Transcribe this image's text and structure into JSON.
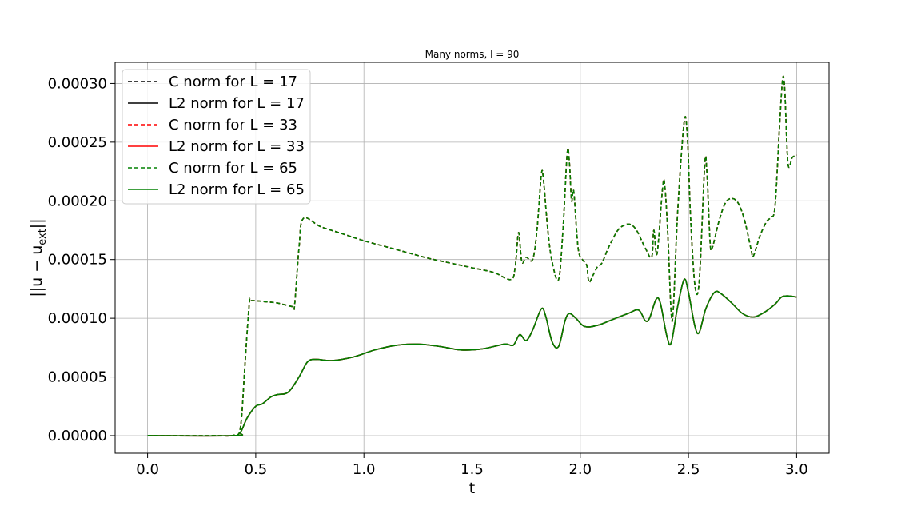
{
  "chart_data": {
    "type": "line",
    "title": "Many norms, l = 90",
    "xlabel": "t",
    "ylabel": "||u − u_ext||",
    "ylabel_main": "||u − u",
    "ylabel_sub": "ext",
    "ylabel_end": "||",
    "xlim": [
      -0.15,
      3.15
    ],
    "ylim": [
      -1.5e-05,
      0.000318
    ],
    "grid": true,
    "legend_position": "top-left",
    "x_ticks": [
      0.0,
      0.5,
      1.0,
      1.5,
      2.0,
      2.5,
      3.0
    ],
    "x_tick_labels": [
      "0.0",
      "0.5",
      "1.0",
      "1.5",
      "2.0",
      "2.5",
      "3.0"
    ],
    "y_ticks": [
      0,
      5e-05,
      0.0001,
      0.00015,
      0.0002,
      0.00025,
      0.0003
    ],
    "y_tick_labels": [
      "0.00000",
      "0.00005",
      "0.00010",
      "0.00015",
      "0.00020",
      "0.00025",
      "0.00030"
    ],
    "series": [
      {
        "name": "C norm for L = 17",
        "color": "#000000",
        "dash": true,
        "curve": "c"
      },
      {
        "name": "L2 norm for L = 17",
        "color": "#000000",
        "dash": false,
        "curve": "l2"
      },
      {
        "name": "C norm for L = 33",
        "color": "#ff0000",
        "dash": true,
        "curve": "c"
      },
      {
        "name": "L2 norm for L = 33",
        "color": "#ff0000",
        "dash": false,
        "curve": "l2"
      },
      {
        "name": "C norm for L = 65",
        "color": "#008000",
        "dash": true,
        "curve": "c"
      },
      {
        "name": "L2 norm for L = 65",
        "color": "#008000",
        "dash": false,
        "curve": "l2"
      }
    ],
    "curves": {
      "c": [
        [
          0.0,
          0.0
        ],
        [
          0.3,
          0.0
        ],
        [
          0.4,
          5e-07
        ],
        [
          0.43,
          8e-06
        ],
        [
          0.45,
          6e-05
        ],
        [
          0.47,
          0.000112
        ],
        [
          0.48,
          0.000115
        ],
        [
          0.55,
          0.000114
        ],
        [
          0.6,
          0.000113
        ],
        [
          0.67,
          0.00011
        ],
        [
          0.68,
          0.000112
        ],
        [
          0.7,
          0.00016
        ],
        [
          0.72,
          0.000185
        ],
        [
          0.8,
          0.000178
        ],
        [
          0.9,
          0.000172
        ],
        [
          1.0,
          0.000166
        ],
        [
          1.1,
          0.000161
        ],
        [
          1.2,
          0.000156
        ],
        [
          1.3,
          0.000151
        ],
        [
          1.4,
          0.000147
        ],
        [
          1.5,
          0.000143
        ],
        [
          1.6,
          0.000139
        ],
        [
          1.68,
          0.000133
        ],
        [
          1.7,
          0.000145
        ],
        [
          1.715,
          0.000173
        ],
        [
          1.73,
          0.000148
        ],
        [
          1.75,
          0.000152
        ],
        [
          1.78,
          0.00015
        ],
        [
          1.8,
          0.000175
        ],
        [
          1.82,
          0.000222
        ],
        [
          1.83,
          0.000218
        ],
        [
          1.85,
          0.000175
        ],
        [
          1.87,
          0.000148
        ],
        [
          1.9,
          0.000133
        ],
        [
          1.92,
          0.000175
        ],
        [
          1.94,
          0.000241
        ],
        [
          1.95,
          0.000232
        ],
        [
          1.96,
          0.0002
        ],
        [
          1.97,
          0.000208
        ],
        [
          1.99,
          0.00016
        ],
        [
          2.01,
          0.00015
        ],
        [
          2.03,
          0.000145
        ],
        [
          2.04,
          0.000131
        ],
        [
          2.06,
          0.000137
        ],
        [
          2.08,
          0.000144
        ],
        [
          2.1,
          0.000147
        ],
        [
          2.13,
          0.00016
        ],
        [
          2.17,
          0.000174
        ],
        [
          2.2,
          0.000179
        ],
        [
          2.23,
          0.00018
        ],
        [
          2.26,
          0.000175
        ],
        [
          2.3,
          0.00016
        ],
        [
          2.33,
          0.000152
        ],
        [
          2.34,
          0.000175
        ],
        [
          2.355,
          0.000155
        ],
        [
          2.38,
          0.00021
        ],
        [
          2.39,
          0.000214
        ],
        [
          2.405,
          0.00017
        ],
        [
          2.42,
          0.000105
        ],
        [
          2.43,
          0.000108
        ],
        [
          2.45,
          0.00019
        ],
        [
          2.48,
          0.000267
        ],
        [
          2.495,
          0.000255
        ],
        [
          2.51,
          0.000185
        ],
        [
          2.53,
          0.000128
        ],
        [
          2.55,
          0.000132
        ],
        [
          2.575,
          0.00023
        ],
        [
          2.585,
          0.000225
        ],
        [
          2.6,
          0.000165
        ],
        [
          2.61,
          0.00016
        ],
        [
          2.64,
          0.000182
        ],
        [
          2.67,
          0.000198
        ],
        [
          2.7,
          0.000202
        ],
        [
          2.73,
          0.000198
        ],
        [
          2.76,
          0.000183
        ],
        [
          2.79,
          0.000158
        ],
        [
          2.8,
          0.000153
        ],
        [
          2.83,
          0.00017
        ],
        [
          2.86,
          0.000182
        ],
        [
          2.88,
          0.000186
        ],
        [
          2.9,
          0.000195
        ],
        [
          2.92,
          0.00026
        ],
        [
          2.935,
          0.000303
        ],
        [
          2.945,
          0.000295
        ],
        [
          2.96,
          0.000232
        ],
        [
          2.98,
          0.000237
        ],
        [
          3.0,
          0.000239
        ]
      ],
      "l2": [
        [
          0.0,
          0.0
        ],
        [
          0.4,
          0.0
        ],
        [
          0.43,
          3e-06
        ],
        [
          0.46,
          1.5e-05
        ],
        [
          0.5,
          2.5e-05
        ],
        [
          0.53,
          2.7e-05
        ],
        [
          0.57,
          3.3e-05
        ],
        [
          0.6,
          3.5e-05
        ],
        [
          0.65,
          3.7e-05
        ],
        [
          0.7,
          5e-05
        ],
        [
          0.74,
          6.3e-05
        ],
        [
          0.78,
          6.5e-05
        ],
        [
          0.85,
          6.4e-05
        ],
        [
          0.95,
          6.7e-05
        ],
        [
          1.05,
          7.3e-05
        ],
        [
          1.15,
          7.7e-05
        ],
        [
          1.25,
          7.8e-05
        ],
        [
          1.35,
          7.6e-05
        ],
        [
          1.45,
          7.3e-05
        ],
        [
          1.55,
          7.4e-05
        ],
        [
          1.65,
          7.8e-05
        ],
        [
          1.69,
          7.7e-05
        ],
        [
          1.72,
          8.6e-05
        ],
        [
          1.75,
          8.1e-05
        ],
        [
          1.78,
          9e-05
        ],
        [
          1.82,
          0.000108
        ],
        [
          1.84,
          0.000102
        ],
        [
          1.87,
          8e-05
        ],
        [
          1.9,
          7.6e-05
        ],
        [
          1.93,
          9.8e-05
        ],
        [
          1.95,
          0.000104
        ],
        [
          1.98,
          0.0001
        ],
        [
          2.02,
          9.3e-05
        ],
        [
          2.08,
          9.4e-05
        ],
        [
          2.15,
          9.9e-05
        ],
        [
          2.22,
          0.000104
        ],
        [
          2.27,
          0.000107
        ],
        [
          2.3,
          9.8e-05
        ],
        [
          2.32,
          0.0001
        ],
        [
          2.35,
          0.000116
        ],
        [
          2.37,
          0.000113
        ],
        [
          2.4,
          8.5e-05
        ],
        [
          2.42,
          7.9e-05
        ],
        [
          2.45,
          0.00011
        ],
        [
          2.48,
          0.000133
        ],
        [
          2.5,
          0.000122
        ],
        [
          2.53,
          9.3e-05
        ],
        [
          2.55,
          8.8e-05
        ],
        [
          2.58,
          0.000108
        ],
        [
          2.62,
          0.000122
        ],
        [
          2.65,
          0.000121
        ],
        [
          2.7,
          0.000113
        ],
        [
          2.75,
          0.000104
        ],
        [
          2.8,
          0.000101
        ],
        [
          2.85,
          0.000105
        ],
        [
          2.9,
          0.000112
        ],
        [
          2.93,
          0.000118
        ],
        [
          2.96,
          0.000119
        ],
        [
          3.0,
          0.000118
        ]
      ]
    }
  }
}
